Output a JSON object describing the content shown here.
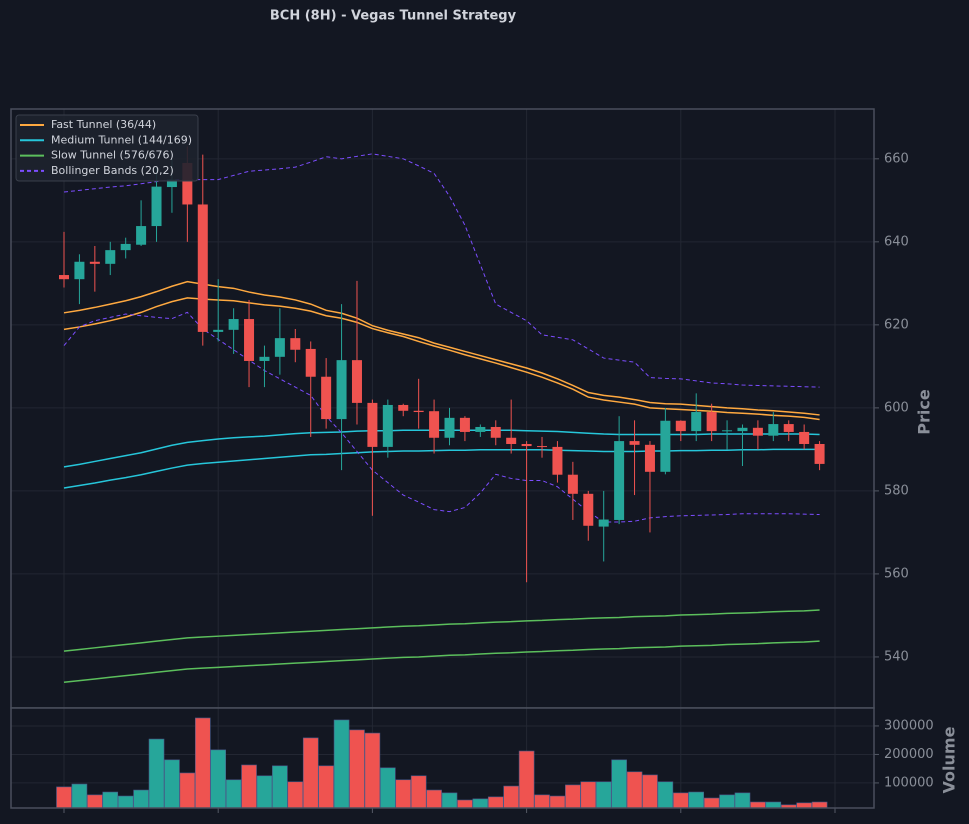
{
  "chart_data": [
    {
      "type": "candlestick",
      "title": "BCH (8H) - Vegas Tunnel Strategy",
      "ylabel": "Price",
      "categories": [
        null,
        null,
        null,
        null,
        null,
        null,
        null,
        null,
        null,
        null,
        null,
        null,
        null,
        null,
        null,
        null,
        null,
        null,
        null,
        null,
        null,
        null,
        null,
        null,
        null,
        null,
        null,
        null,
        null,
        null,
        null,
        null,
        null,
        null,
        null,
        null,
        null,
        null,
        null,
        null,
        null,
        null,
        null,
        null,
        null,
        null,
        null,
        null,
        null,
        null
      ],
      "open": [
        632,
        631,
        635.2,
        634.7,
        638,
        639.3,
        643.8,
        653.2,
        659,
        649,
        618.3,
        618.8,
        621.4,
        611.3,
        612.3,
        616.8,
        614.2,
        607.5,
        597.3,
        611.5,
        601.2,
        590.6,
        600.7,
        599.3,
        599.2,
        592.8,
        597.6,
        594.2,
        595.4,
        592.8,
        591.3,
        590.8,
        590.6,
        583.9,
        579.3,
        571.4,
        573,
        592,
        591.1,
        584.6,
        596.9,
        594.4,
        599,
        594.4,
        594.4,
        595.2,
        593.3,
        596.1,
        594.2,
        591.3
      ],
      "high": [
        642.4,
        637,
        639,
        640,
        641,
        650,
        658,
        660,
        663,
        661,
        631,
        624,
        626,
        615,
        624,
        619,
        616,
        612,
        625,
        630.6,
        602,
        602,
        601,
        607,
        602,
        600,
        598,
        596,
        597,
        602,
        592,
        593,
        592,
        587,
        580,
        580,
        598,
        597,
        592,
        600,
        597,
        603.5,
        601,
        597,
        596,
        597,
        599,
        597,
        596,
        592
      ],
      "low": [
        629,
        625,
        628,
        632,
        636,
        639,
        640,
        647,
        640,
        615,
        616,
        613,
        605,
        605,
        608,
        611,
        593,
        595,
        585,
        596,
        574,
        588,
        598,
        595,
        589,
        591,
        592,
        593,
        591,
        589,
        558,
        588,
        582,
        573,
        568,
        563,
        572,
        579,
        570,
        584,
        592,
        592,
        592,
        590,
        586,
        590,
        592,
        592,
        590,
        585
      ],
      "close": [
        631,
        635.2,
        634.7,
        638,
        639.5,
        643.8,
        653.3,
        655,
        649,
        618.3,
        618.8,
        621.4,
        611.3,
        612.3,
        616.8,
        614,
        607.5,
        597.3,
        611.5,
        601.2,
        590.6,
        600.7,
        599.3,
        599,
        592.8,
        597.6,
        594.2,
        595.4,
        592.8,
        591.3,
        590.8,
        590.6,
        583.9,
        579.3,
        571.6,
        573.1,
        592,
        591.1,
        584.6,
        596.9,
        594.4,
        599,
        594.4,
        594.6,
        595.2,
        593.3,
        596.1,
        594.2,
        591.3,
        586.5
      ],
      "up_color": "#26a69a",
      "down_color": "#ef5350",
      "series": [
        {
          "name": "Fast Tunnel (36/44)",
          "color": "#ffa940",
          "dashed": false,
          "upper": [
            622.9,
            623.5,
            624.2,
            625,
            625.8,
            626.8,
            628,
            629.3,
            630.4,
            629.8,
            629.2,
            628.8,
            627.9,
            627.2,
            626.7,
            626,
            625,
            623.5,
            622.8,
            621.6,
            619.8,
            618.7,
            617.8,
            616.9,
            615.6,
            614.6,
            613.6,
            612.6,
            611.6,
            610.6,
            609.6,
            608.4,
            607,
            605.4,
            603.7,
            603,
            602.6,
            602,
            601.3,
            601,
            600.9,
            600.6,
            600.3,
            600,
            599.8,
            599.5,
            599.3,
            599,
            598.7,
            598.3
          ],
          "lower": [
            618.9,
            619.5,
            620.2,
            621,
            621.9,
            623,
            624.4,
            625.6,
            626.5,
            626.2,
            626,
            625.8,
            625.3,
            624.8,
            624.5,
            624,
            623.3,
            622.2,
            621.6,
            620.6,
            619.1,
            618.1,
            617.2,
            616,
            614.9,
            613.9,
            612.8,
            611.8,
            610.8,
            609.7,
            608.6,
            607.4,
            606,
            604.5,
            602.6,
            601.9,
            601.4,
            600.9,
            600,
            599.8,
            599.6,
            599.4,
            599.2,
            598.9,
            598.7,
            598.5,
            598.2,
            598,
            597.7,
            597.2
          ]
        },
        {
          "name": "Medium Tunnel (144/169)",
          "color": "#26c6da",
          "dashed": false,
          "upper": [
            585.8,
            586.4,
            587.1,
            587.8,
            588.5,
            589.2,
            590.1,
            591,
            591.7,
            592.1,
            592.5,
            592.8,
            593,
            593.2,
            593.5,
            593.8,
            594,
            594.1,
            594.2,
            594.4,
            594.5,
            594.5,
            594.6,
            594.6,
            594.6,
            594.6,
            594.6,
            594.6,
            594.6,
            594.6,
            594.5,
            594.4,
            594.3,
            594.1,
            593.9,
            593.7,
            593.6,
            593.6,
            593.6,
            593.6,
            593.6,
            593.6,
            593.7,
            593.7,
            593.7,
            593.7,
            593.7,
            593.7,
            593.7,
            593.6
          ],
          "lower": [
            580.7,
            581.3,
            581.9,
            582.6,
            583.2,
            583.9,
            584.7,
            585.5,
            586.2,
            586.6,
            586.9,
            587.2,
            587.5,
            587.8,
            588.1,
            588.4,
            588.7,
            588.8,
            589,
            589.2,
            589.4,
            589.5,
            589.6,
            589.6,
            589.7,
            589.8,
            589.8,
            589.9,
            589.9,
            589.9,
            589.9,
            589.9,
            589.8,
            589.7,
            589.6,
            589.5,
            589.5,
            589.5,
            589.6,
            589.6,
            589.7,
            589.7,
            589.8,
            589.8,
            589.9,
            589.9,
            590,
            590,
            590,
            590
          ]
        },
        {
          "name": "Slow Tunnel (576/676)",
          "color": "#5cbf5c",
          "dashed": false,
          "upper": [
            541.4,
            541.8,
            542.2,
            542.6,
            543,
            543.4,
            543.8,
            544.2,
            544.6,
            544.8,
            545,
            545.2,
            545.4,
            545.6,
            545.8,
            546,
            546.2,
            546.4,
            546.6,
            546.8,
            547,
            547.2,
            547.4,
            547.5,
            547.7,
            547.9,
            548,
            548.2,
            548.4,
            548.5,
            548.7,
            548.8,
            549,
            549.1,
            549.3,
            549.4,
            549.5,
            549.7,
            549.8,
            549.9,
            550.1,
            550.2,
            550.3,
            550.5,
            550.6,
            550.7,
            550.9,
            551,
            551.1,
            551.3
          ],
          "lower": [
            533.9,
            534.3,
            534.7,
            535.1,
            535.5,
            535.9,
            536.3,
            536.7,
            537.1,
            537.3,
            537.5,
            537.7,
            537.9,
            538.1,
            538.3,
            538.5,
            538.7,
            538.9,
            539.1,
            539.3,
            539.5,
            539.7,
            539.9,
            540,
            540.2,
            540.4,
            540.5,
            540.7,
            540.9,
            541,
            541.2,
            541.3,
            541.5,
            541.6,
            541.8,
            541.9,
            542,
            542.2,
            542.3,
            542.4,
            542.6,
            542.7,
            542.8,
            543,
            543.1,
            543.2,
            543.4,
            543.5,
            543.6,
            543.8
          ]
        },
        {
          "name": "Bollinger Bands (20,2)",
          "color": "#7c4dff",
          "dashed": true,
          "upper": [
            652,
            652.4,
            652.8,
            653.2,
            653.5,
            654,
            654.5,
            655,
            655,
            655,
            655,
            656,
            657,
            657.3,
            657.6,
            658,
            659.2,
            660.5,
            660,
            660.6,
            661.2,
            660.6,
            660,
            658.3,
            656.5,
            651,
            644,
            634.5,
            625,
            623,
            621,
            617.6,
            617,
            616.4,
            614.2,
            612,
            611.5,
            611,
            607.3,
            607.1,
            607,
            606.5,
            606,
            605.8,
            605.5,
            605.4,
            605.3,
            605.2,
            605.1,
            605
          ],
          "lower": [
            615,
            619.5,
            621,
            621.8,
            622.6,
            622.2,
            621.8,
            621.5,
            623,
            619,
            616.5,
            614,
            611.5,
            609,
            607,
            605,
            603,
            598,
            594,
            589.5,
            585,
            582,
            579,
            577.3,
            575.5,
            575,
            576,
            579.5,
            584,
            583,
            582.5,
            582.5,
            581,
            578,
            575,
            572.5,
            572.5,
            572.7,
            573.5,
            573.8,
            574,
            574.1,
            574.2,
            574.3,
            574.5,
            574.5,
            574.5,
            574.5,
            574.4,
            574.3
          ]
        }
      ],
      "ylim": [
        527.7,
        672
      ],
      "yticks": [
        540,
        560,
        580,
        600,
        620,
        640,
        660
      ],
      "grid": true,
      "legend": "upper left"
    },
    {
      "type": "bar",
      "ylabel": "Volume",
      "values": [
        86000,
        96000,
        58000,
        68000,
        54000,
        75000,
        254000,
        181000,
        135000,
        328000,
        216000,
        111000,
        163000,
        125000,
        160000,
        104000,
        258000,
        160000,
        321000,
        286000,
        275000,
        153000,
        111000,
        125000,
        75000,
        65000,
        40000,
        44000,
        51000,
        89000,
        212000,
        58000,
        54000,
        93000,
        104000,
        104000,
        181000,
        139000,
        128000,
        104000,
        65000,
        68000,
        47000,
        58000,
        65000,
        33000,
        33000,
        23000,
        30000,
        33000
      ],
      "ylim": [
        12000,
        363000
      ],
      "yticks": [
        100000,
        200000,
        300000
      ],
      "grid": true
    }
  ]
}
